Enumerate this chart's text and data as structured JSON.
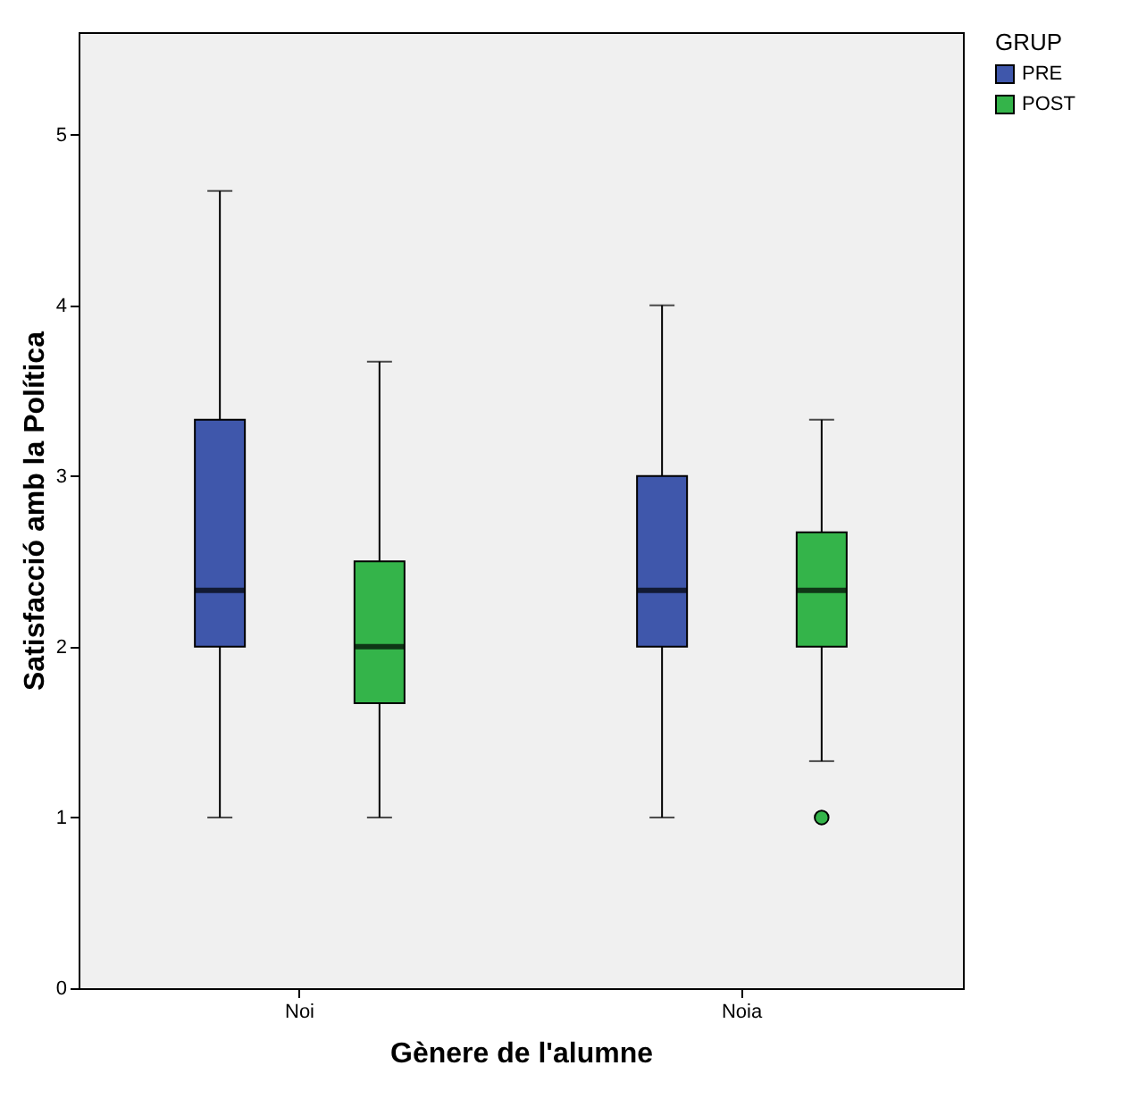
{
  "chart_data": {
    "type": "box",
    "xlabel": "Gènere de l'alumne",
    "ylabel": "Satisfacció amb la Política",
    "legend_title": "GRUP",
    "legend": "top right",
    "grid": false,
    "categories": [
      "Noi",
      "Noia"
    ],
    "ylim": [
      0,
      5.6
    ],
    "yticks": [
      0,
      1,
      2,
      3,
      4,
      5
    ],
    "series": [
      {
        "name": "PRE",
        "color": "#3f57ab",
        "boxes": [
          {
            "low": 1,
            "q1": 2,
            "median": 2.33,
            "q3": 3.33,
            "high": 4.67
          },
          {
            "low": 1,
            "q1": 2,
            "median": 2.33,
            "q3": 3,
            "high": 4
          }
        ]
      },
      {
        "name": "POST",
        "color": "#34b44a",
        "boxes": [
          {
            "low": 1,
            "q1": 1.67,
            "median": 2,
            "q3": 2.5,
            "high": 3.67
          },
          {
            "low": 1.33,
            "q1": 2,
            "median": 2.33,
            "q3": 2.67,
            "high": 3.33,
            "outliers": [
              1
            ]
          }
        ]
      }
    ]
  }
}
